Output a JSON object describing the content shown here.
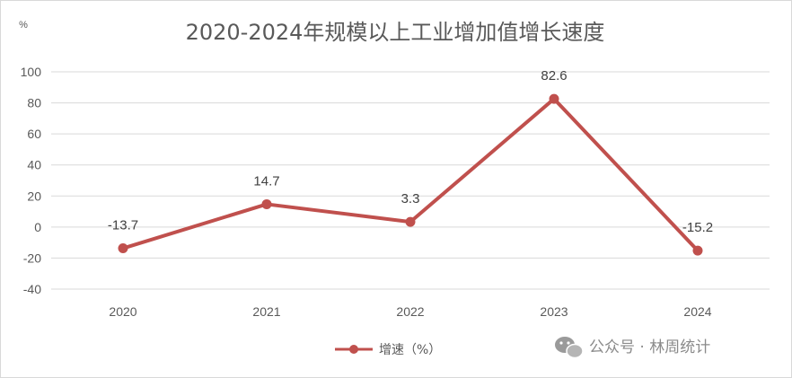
{
  "chart_data": {
    "type": "line",
    "title": "2020-2024年规模以上工业增加值增长速度",
    "unit_label": "%",
    "categories": [
      "2020",
      "2021",
      "2022",
      "2023",
      "2024"
    ],
    "series": [
      {
        "name": "增速（%）",
        "values": [
          -13.7,
          14.7,
          3.3,
          82.6,
          -15.2
        ],
        "color": "#c0504d"
      }
    ],
    "data_labels": [
      "-13.7",
      "14.7",
      "3.3",
      "82.6",
      "-15.2"
    ],
    "ylim": [
      -40,
      100
    ],
    "yticks": [
      -40,
      -20,
      0,
      20,
      40,
      60,
      80,
      100
    ],
    "grid": true,
    "legend_position": "bottom"
  },
  "watermark": {
    "text": "公众号 · 林周统计",
    "icon": "wechat-icon"
  }
}
